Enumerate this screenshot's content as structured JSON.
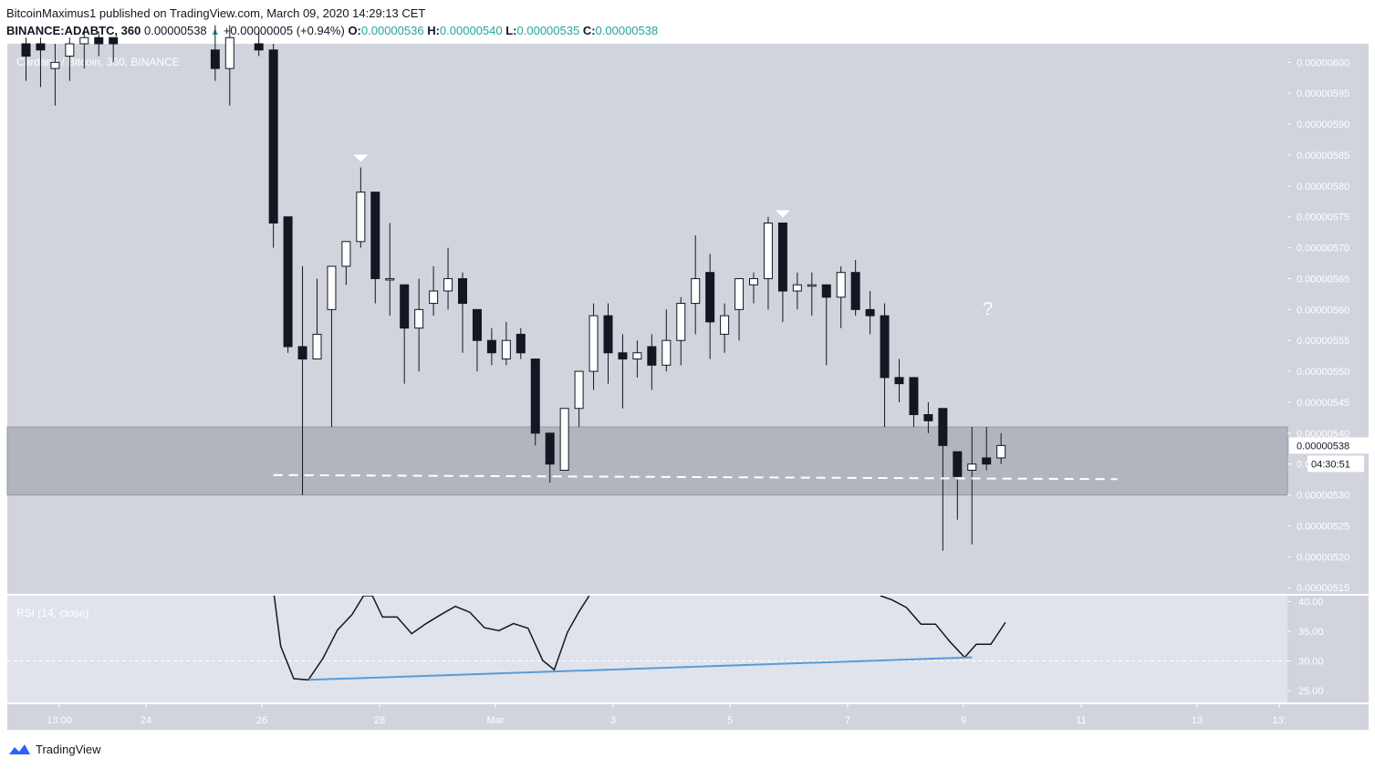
{
  "header": {
    "author": "BitcoinMaximus1",
    "published_text": "published on TradingView.com, March 09, 2020 14:29:13 CET",
    "symbol_line": "BINANCE:ADABTC, 360",
    "last_price": "0.00000538",
    "change": "+0.00000005 (+0.94%)",
    "open_label": "O:",
    "open": "0.00000536",
    "high_label": "H:",
    "high": "0.00000540",
    "low_label": "L:",
    "low": "0.00000535",
    "close_label": "C:",
    "close": "0.00000538"
  },
  "chart_data": [
    {
      "type": "candlestick",
      "title": "Cardano / Bitcoin, 360, BINANCE",
      "ylim": [
        5.14e-06,
        6.03e-06
      ],
      "x_ticks": [
        "13:00",
        "24",
        "26",
        "28",
        "Mar",
        "3",
        "5",
        "7",
        "9",
        "11",
        "13",
        "13:"
      ],
      "y_ticks": [
        "0.00000600",
        "0.00000595",
        "0.00000590",
        "0.00000585",
        "0.00000580",
        "0.00000575",
        "0.00000570",
        "0.00000565",
        "0.00000560",
        "0.00000555",
        "0.00000550",
        "0.00000545",
        "0.00000540",
        "0.00000535",
        "0.00000530",
        "0.00000525",
        "0.00000520",
        "0.00000515"
      ],
      "last_price_label": "0.00000538",
      "countdown_label": "04:30:51",
      "support_zone": [
        5.3e-06,
        5.41e-06
      ],
      "annotation": "?",
      "candles": [
        {
          "t": 0,
          "o": 603,
          "h": 604,
          "l": 597,
          "c": 601
        },
        {
          "t": 1,
          "o": 603,
          "h": 604,
          "l": 596,
          "c": 602
        },
        {
          "t": 2,
          "o": 599,
          "h": 603,
          "l": 593,
          "c": 600
        },
        {
          "t": 3,
          "o": 601,
          "h": 604,
          "l": 597,
          "c": 603
        },
        {
          "t": 4,
          "o": 603,
          "h": 605,
          "l": 599,
          "c": 604
        },
        {
          "t": 5,
          "o": 604,
          "h": 605,
          "l": 601,
          "c": 603
        },
        {
          "t": 6,
          "o": 604,
          "h": 604,
          "l": 600,
          "c": 603
        },
        {
          "t": 13,
          "o": 602,
          "h": 606,
          "l": 597,
          "c": 599
        },
        {
          "t": 14,
          "o": 599,
          "h": 606,
          "l": 593,
          "c": 604
        },
        {
          "t": 16,
          "o": 603,
          "h": 605,
          "l": 601,
          "c": 602
        },
        {
          "t": 17,
          "o": 602,
          "h": 603,
          "l": 570,
          "c": 574
        },
        {
          "t": 18,
          "o": 575,
          "h": 575,
          "l": 553,
          "c": 554
        },
        {
          "t": 19,
          "o": 554,
          "h": 567,
          "l": 530,
          "c": 552
        },
        {
          "t": 20,
          "o": 552,
          "h": 565,
          "l": 552,
          "c": 556
        },
        {
          "t": 21,
          "o": 560,
          "h": 567,
          "l": 541,
          "c": 567
        },
        {
          "t": 22,
          "o": 567,
          "h": 571,
          "l": 564,
          "c": 571
        },
        {
          "t": 23,
          "o": 571,
          "h": 583,
          "l": 570,
          "c": 579
        },
        {
          "t": 24,
          "o": 579,
          "h": 579,
          "l": 561,
          "c": 565
        },
        {
          "t": 25,
          "o": 565,
          "h": 574,
          "l": 559,
          "c": 565
        },
        {
          "t": 26,
          "o": 564,
          "h": 564,
          "l": 548,
          "c": 557
        },
        {
          "t": 27,
          "o": 557,
          "h": 565,
          "l": 550,
          "c": 560
        },
        {
          "t": 28,
          "o": 561,
          "h": 567,
          "l": 559,
          "c": 563
        },
        {
          "t": 29,
          "o": 563,
          "h": 570,
          "l": 560,
          "c": 565
        },
        {
          "t": 30,
          "o": 565,
          "h": 566,
          "l": 553,
          "c": 561
        },
        {
          "t": 31,
          "o": 560,
          "h": 560,
          "l": 550,
          "c": 555
        },
        {
          "t": 32,
          "o": 555,
          "h": 557,
          "l": 551,
          "c": 553
        },
        {
          "t": 33,
          "o": 552,
          "h": 558,
          "l": 551,
          "c": 555
        },
        {
          "t": 34,
          "o": 556,
          "h": 557,
          "l": 552,
          "c": 553
        },
        {
          "t": 35,
          "o": 552,
          "h": 552,
          "l": 538,
          "c": 540
        },
        {
          "t": 36,
          "o": 540,
          "h": 540,
          "l": 532,
          "c": 535
        },
        {
          "t": 37,
          "o": 534,
          "h": 544,
          "l": 534,
          "c": 544
        },
        {
          "t": 38,
          "o": 544,
          "h": 550,
          "l": 541,
          "c": 550
        },
        {
          "t": 39,
          "o": 550,
          "h": 561,
          "l": 547,
          "c": 559
        },
        {
          "t": 40,
          "o": 559,
          "h": 561,
          "l": 548,
          "c": 553
        },
        {
          "t": 41,
          "o": 553,
          "h": 556,
          "l": 544,
          "c": 552
        },
        {
          "t": 42,
          "o": 552,
          "h": 555,
          "l": 549,
          "c": 553
        },
        {
          "t": 43,
          "o": 554,
          "h": 556,
          "l": 547,
          "c": 551
        },
        {
          "t": 44,
          "o": 551,
          "h": 560,
          "l": 550,
          "c": 555
        },
        {
          "t": 45,
          "o": 555,
          "h": 562,
          "l": 551,
          "c": 561
        },
        {
          "t": 46,
          "o": 561,
          "h": 572,
          "l": 556,
          "c": 565
        },
        {
          "t": 47,
          "o": 566,
          "h": 569,
          "l": 552,
          "c": 558
        },
        {
          "t": 48,
          "o": 556,
          "h": 561,
          "l": 553,
          "c": 559
        },
        {
          "t": 49,
          "o": 560,
          "h": 565,
          "l": 555,
          "c": 565
        },
        {
          "t": 50,
          "o": 564,
          "h": 566,
          "l": 561,
          "c": 565
        },
        {
          "t": 51,
          "o": 565,
          "h": 575,
          "l": 560,
          "c": 574
        },
        {
          "t": 52,
          "o": 574,
          "h": 574,
          "l": 558,
          "c": 563
        },
        {
          "t": 53,
          "o": 563,
          "h": 566,
          "l": 560,
          "c": 564
        },
        {
          "t": 54,
          "o": 564,
          "h": 566,
          "l": 559,
          "c": 564
        },
        {
          "t": 55,
          "o": 564,
          "h": 564,
          "l": 551,
          "c": 562
        },
        {
          "t": 56,
          "o": 562,
          "h": 567,
          "l": 557,
          "c": 566
        },
        {
          "t": 57,
          "o": 566,
          "h": 568,
          "l": 559,
          "c": 560
        },
        {
          "t": 58,
          "o": 560,
          "h": 563,
          "l": 556,
          "c": 559
        },
        {
          "t": 59,
          "o": 559,
          "h": 561,
          "l": 541,
          "c": 549
        },
        {
          "t": 60,
          "o": 549,
          "h": 552,
          "l": 545,
          "c": 548
        },
        {
          "t": 61,
          "o": 549,
          "h": 549,
          "l": 541,
          "c": 543
        },
        {
          "t": 62,
          "o": 543,
          "h": 545,
          "l": 540,
          "c": 542
        },
        {
          "t": 63,
          "o": 544,
          "h": 544,
          "l": 521,
          "c": 538
        },
        {
          "t": 64,
          "o": 537,
          "h": 537,
          "l": 526,
          "c": 533
        },
        {
          "t": 65,
          "o": 534,
          "h": 541,
          "l": 522,
          "c": 535
        },
        {
          "t": 66,
          "o": 536,
          "h": 541,
          "l": 534,
          "c": 535
        },
        {
          "t": 67,
          "o": 536,
          "h": 540,
          "l": 535,
          "c": 538
        }
      ],
      "price_scale": 1e-08,
      "lower_high_markers": [
        23,
        52
      ],
      "support_line": {
        "from_t": 17,
        "to_t": 75,
        "value": 5.33e-06
      }
    },
    {
      "type": "line",
      "title": "RSI (14, close)",
      "ylim": [
        23,
        41
      ],
      "y_ticks": [
        "40.00",
        "35.00",
        "30.00",
        "25.00"
      ],
      "oversold_level": 30,
      "points": [
        [
          17,
          42
        ],
        [
          17.5,
          32.5
        ],
        [
          18.4,
          27
        ],
        [
          19.4,
          26.8
        ],
        [
          20.4,
          30.4
        ],
        [
          21.4,
          35.2
        ],
        [
          22.4,
          37.8
        ],
        [
          23.2,
          41
        ],
        [
          23.8,
          41
        ],
        [
          24.5,
          37.4
        ],
        [
          25.5,
          37.4
        ],
        [
          26.5,
          34.6
        ],
        [
          27.5,
          36.3
        ],
        [
          28.5,
          37.8
        ],
        [
          29.5,
          39.2
        ],
        [
          30.5,
          38.2
        ],
        [
          31.5,
          35.6
        ],
        [
          32.5,
          35.1
        ],
        [
          33.5,
          36.3
        ],
        [
          34.5,
          35.5
        ],
        [
          35.5,
          30.1
        ],
        [
          36.3,
          28.5
        ],
        [
          37.2,
          34.8
        ],
        [
          38,
          38.3
        ],
        [
          38.7,
          41
        ],
        [
          58.7,
          41
        ],
        [
          59.5,
          40.3
        ],
        [
          60.5,
          39
        ],
        [
          61.5,
          36.2
        ],
        [
          62.5,
          36.2
        ],
        [
          63.5,
          33.2
        ],
        [
          64.5,
          30.6
        ],
        [
          65.3,
          32.8
        ],
        [
          66.3,
          32.8
        ],
        [
          67.3,
          36.5
        ]
      ],
      "divergence_line": [
        [
          19.4,
          26.8
        ],
        [
          65,
          30.6
        ]
      ],
      "divergence_color": "#5b9bd5"
    }
  ],
  "footer": {
    "brand": "TradingView",
    "brand_color": "#2962ff"
  },
  "colors": {
    "main_bg": "#d1d4dc",
    "rsi_bg": "#e0e3eb",
    "zone": "#b2b5be",
    "candle_up": "#ffffff",
    "candle_down": "#131722",
    "axis_text": "#ffffff",
    "change_green": "#26a69a"
  }
}
